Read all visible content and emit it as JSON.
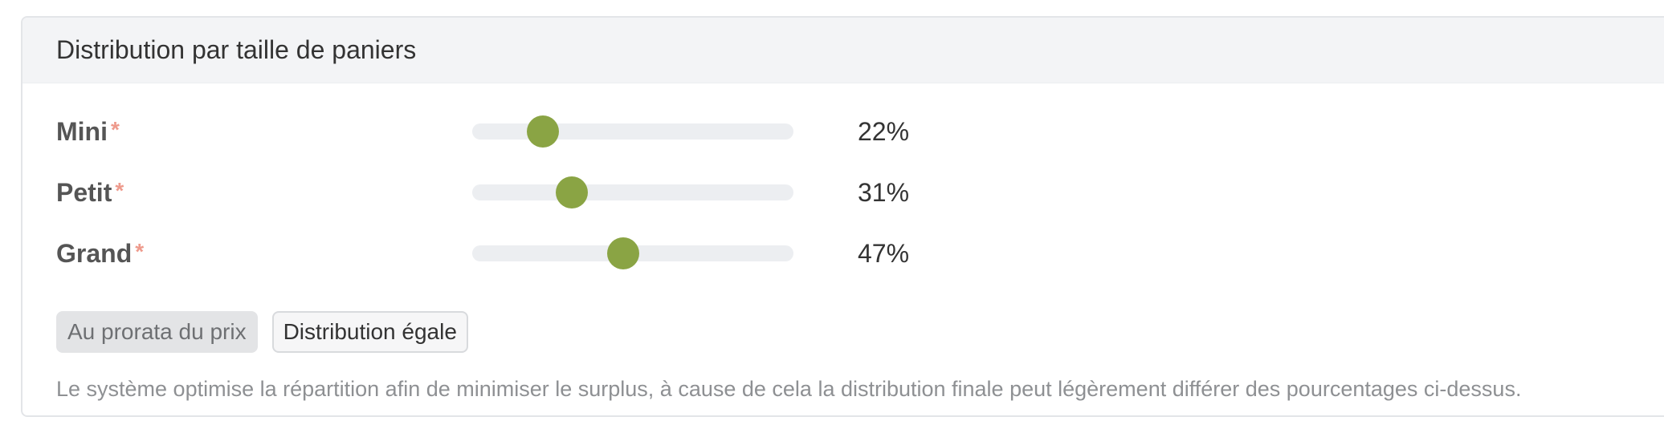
{
  "panel": {
    "title": "Distribution par taille de paniers"
  },
  "required_mark": "*",
  "sliders": [
    {
      "label": "Mini",
      "value": 22,
      "value_text": "22%"
    },
    {
      "label": "Petit",
      "value": 31,
      "value_text": "31%"
    },
    {
      "label": "Grand",
      "value": 47,
      "value_text": "47%"
    }
  ],
  "colors": {
    "accent": "#8aa444",
    "required": "#ee9a8c"
  },
  "buttons": {
    "prorata_label": "Au prorata du prix",
    "equal_label": "Distribution égale"
  },
  "note": "Le système optimise la répartition afin de minimiser le surplus, à cause de cela la distribution finale peut légèrement différer des pourcentages ci-dessus."
}
